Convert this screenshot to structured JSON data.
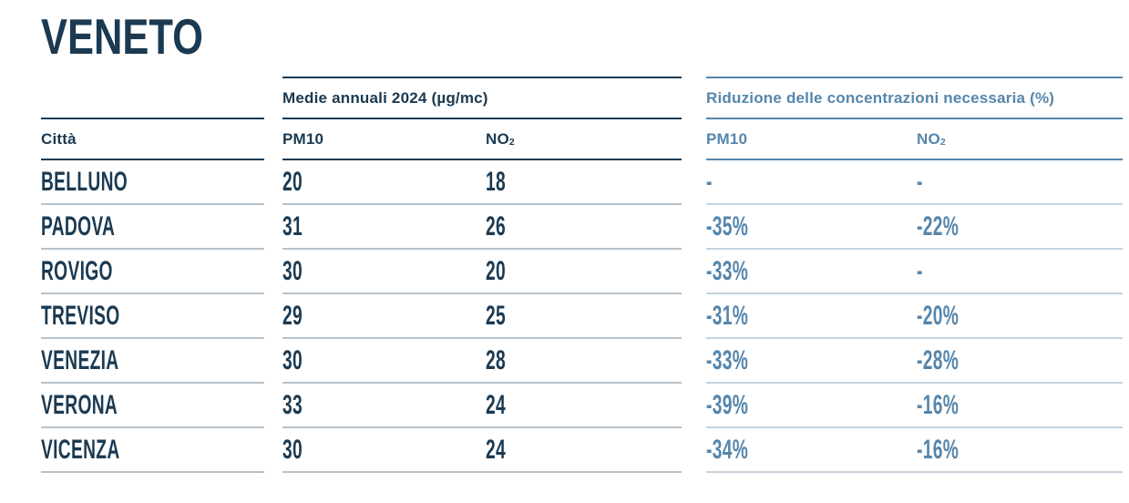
{
  "page": {
    "title": "VENETO"
  },
  "colors": {
    "navy": "#1b3a52",
    "steel": "#5586ac",
    "separator_left": "#b7c1c9",
    "separator_right": "#c4d2dd",
    "background": "#ffffff"
  },
  "table": {
    "city_header": "Città",
    "groups": [
      {
        "label": "Medie annuali 2024 (µg/mc)",
        "columns": [
          {
            "base": "PM10",
            "sub": ""
          },
          {
            "base": "NO",
            "sub": "2"
          }
        ]
      },
      {
        "label": "Riduzione delle concentrazioni necessaria (%)",
        "columns": [
          {
            "base": "PM10",
            "sub": ""
          },
          {
            "base": "NO",
            "sub": "2"
          }
        ]
      }
    ],
    "rows": [
      {
        "city": "BELLUNO",
        "pm10_avg": "20",
        "no2_avg": "18",
        "pm10_red": "-",
        "no2_red": "-"
      },
      {
        "city": "PADOVA",
        "pm10_avg": "31",
        "no2_avg": "26",
        "pm10_red": "-35%",
        "no2_red": "-22%"
      },
      {
        "city": "ROVIGO",
        "pm10_avg": "30",
        "no2_avg": "20",
        "pm10_red": "-33%",
        "no2_red": "-"
      },
      {
        "city": "TREVISO",
        "pm10_avg": "29",
        "no2_avg": "25",
        "pm10_red": "-31%",
        "no2_red": "-20%"
      },
      {
        "city": "VENEZIA",
        "pm10_avg": "30",
        "no2_avg": "28",
        "pm10_red": "-33%",
        "no2_red": "-28%"
      },
      {
        "city": "VERONA",
        "pm10_avg": "33",
        "no2_avg": "24",
        "pm10_red": "-39%",
        "no2_red": "-16%"
      },
      {
        "city": "VICENZA",
        "pm10_avg": "30",
        "no2_avg": "24",
        "pm10_red": "-34%",
        "no2_red": "-16%"
      }
    ]
  },
  "chart_data": {
    "type": "table",
    "title": "VENETO",
    "column_groups": [
      "Medie annuali 2024 (µg/mc)",
      "Riduzione delle concentrazioni necessaria (%)"
    ],
    "columns": [
      "Città",
      "PM10 media annuale 2024 (µg/mc)",
      "NO2 media annuale 2024 (µg/mc)",
      "PM10 riduzione necessaria (%)",
      "NO2 riduzione necessaria (%)"
    ],
    "rows": [
      [
        "BELLUNO",
        20,
        18,
        null,
        null
      ],
      [
        "PADOVA",
        31,
        26,
        -35,
        -22
      ],
      [
        "ROVIGO",
        30,
        20,
        -33,
        null
      ],
      [
        "TREVISO",
        29,
        25,
        -31,
        -20
      ],
      [
        "VENEZIA",
        30,
        28,
        -33,
        -28
      ],
      [
        "VERONA",
        33,
        24,
        -39,
        -16
      ],
      [
        "VICENZA",
        30,
        24,
        -34,
        -16
      ]
    ]
  }
}
